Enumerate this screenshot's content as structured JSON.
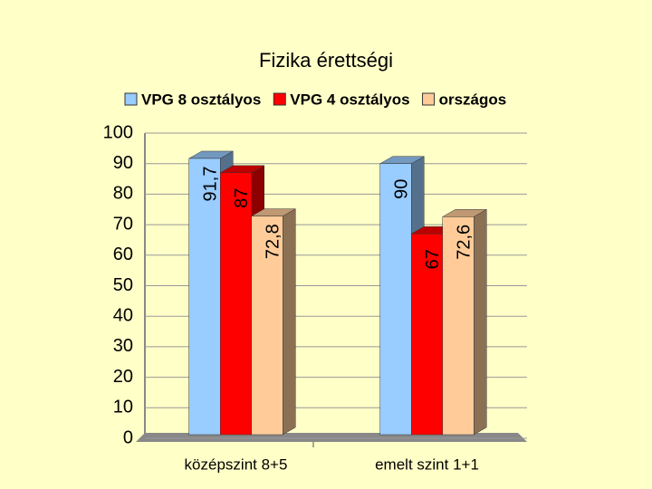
{
  "chart_data": {
    "type": "bar3d",
    "title": "Fizika érettségi",
    "categories": [
      "középszint 8+5",
      "emelt szint 1+1"
    ],
    "series": [
      {
        "name": "VPG 8 osztályos",
        "color": "#99ccff",
        "values": [
          91.7,
          90
        ],
        "value_labels": [
          "91,7",
          "90"
        ]
      },
      {
        "name": "VPG 4 osztályos",
        "color": "#ff0000",
        "values": [
          87,
          67
        ]
      },
      {
        "name": "országos",
        "color": "#ffcc99",
        "values": [
          72.8,
          72.6
        ],
        "value_labels": [
          "72,8",
          "72,6"
        ]
      }
    ],
    "ylim": [
      0,
      100
    ],
    "yticks": [
      0,
      10,
      20,
      30,
      40,
      50,
      60,
      70,
      80,
      90,
      100
    ],
    "grid": true
  }
}
